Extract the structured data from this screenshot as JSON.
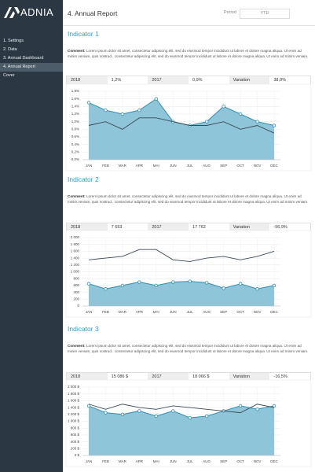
{
  "sidebar": {
    "logo": "ADNIA",
    "menu": [
      "1. Settings",
      "2. Data",
      "3. Annual Dashboard",
      "4. Annual Report",
      "Cover"
    ],
    "active": 3
  },
  "header": {
    "title": "4. Annual Report",
    "period_label": "Period",
    "period_value": "YTD"
  },
  "sections": [
    {
      "title": "Indicator 1",
      "comment_label": "Comment:",
      "comment": "Lorem ipsum dolor sit amet, consectetur adipiscing elit, sed do eiusmod tempor incididunt ut labore et dolore magna aliqua. Ut enim ad minim veniam, quis nostrud.. consectetur adipiscing elit, sed do eiusmod tempor incididunt ut labore et dolore magna aliqua. Ut enim ad minim veniam.",
      "stats": [
        "2018",
        "1,2%",
        "2017",
        "0,9%",
        "Variation",
        "38,0%"
      ]
    },
    {
      "title": "Indicator 2",
      "comment_label": "Comment:",
      "comment": "Lorem ipsum dolor sit amet, consectetur adipiscing elit, sed do eiusmod tempor incididunt ut labore et dolore magna aliqua. Ut enim ad minim veniam, quis nostrud.. consectetur adipiscing elit, sed do eiusmod tempor incididunt ut labore et dolore magna aliqua. Ut enim ad minim veniam.",
      "stats": [
        "2018",
        "7 653",
        "2017",
        "17 762",
        "Variation",
        "-56,9%"
      ]
    },
    {
      "title": "Indicator 3",
      "comment_label": "Comment:",
      "comment": "Lorem ipsum dolor sit amet, consectetur adipiscing elit, sed do eiusmod tempor incididunt ut labore et dolore magna aliqua. Ut enim ad minim veniam, quis nostrud.. consectetur adipiscing elit, sed do eiusmod tempor incididunt ut labore et dolore magna aliqua. Ut enim ad minim veniam.",
      "stats": [
        "2018",
        "15 086 $",
        "2017",
        "18 066 $",
        "Variation",
        "-16,5%"
      ]
    }
  ],
  "chart_data": [
    {
      "type": "area",
      "grid": true,
      "categories": [
        "JAN",
        "FEB",
        "MAR",
        "APR",
        "MAI",
        "JUN",
        "JUL",
        "AUG",
        "SEP",
        "OCT",
        "NOV",
        "DEC"
      ],
      "ylim": [
        0,
        1.8
      ],
      "yticks": [
        {
          "value": 0,
          "label": "0,0%"
        },
        {
          "value": 0.2,
          "label": "0,2%"
        },
        {
          "value": 0.4,
          "label": "0,4%"
        },
        {
          "value": 0.6,
          "label": "0,6%"
        },
        {
          "value": 0.8,
          "label": "0,8%"
        },
        {
          "value": 1,
          "label": "1,0%"
        },
        {
          "value": 1.2,
          "label": "1,2%"
        },
        {
          "value": 1.4,
          "label": "1,4%"
        },
        {
          "value": 1.6,
          "label": "1,6%"
        },
        {
          "value": 1.8,
          "label": "1,8%"
        }
      ],
      "series": [
        {
          "name": "2018",
          "type": "area",
          "color": "#2f8fb5",
          "fill": "#8fc5d9",
          "values": [
            1.5,
            1.3,
            1.2,
            1.3,
            1.6,
            1.0,
            0.9,
            1.0,
            1.4,
            1.2,
            1.0,
            0.9
          ]
        },
        {
          "name": "2017",
          "type": "line",
          "color": "#3b4954",
          "values": [
            0.9,
            1.0,
            0.8,
            1.1,
            1.1,
            1.0,
            0.9,
            0.9,
            1.0,
            0.8,
            0.9,
            0.7
          ]
        }
      ]
    },
    {
      "type": "area",
      "grid": true,
      "categories": [
        "JAN",
        "FEB",
        "MAR",
        "APR",
        "MAI",
        "JUN",
        "JUL",
        "AUG",
        "SEP",
        "OCT",
        "NOV",
        "DEC"
      ],
      "ylim": [
        0,
        2000
      ],
      "yticks": [
        0,
        200,
        400,
        600,
        800,
        {
          "value": 1000,
          "label": "1 000"
        },
        {
          "value": 1200,
          "label": "1 200"
        },
        {
          "value": 1400,
          "label": "1 400"
        },
        {
          "value": 1600,
          "label": "1 600"
        },
        {
          "value": 1800,
          "label": "1 800"
        },
        {
          "value": 2000,
          "label": "2 000"
        }
      ],
      "series": [
        {
          "name": "2018",
          "type": "area",
          "color": "#2f8fb5",
          "fill": "#8fc5d9",
          "values": [
            650,
            500,
            600,
            700,
            600,
            700,
            720,
            680,
            520,
            650,
            500,
            600
          ]
        },
        {
          "name": "2017",
          "type": "line",
          "color": "#3b4954",
          "values": [
            1350,
            1400,
            1450,
            1650,
            1650,
            1350,
            1300,
            1400,
            1450,
            1350,
            1450,
            1600
          ]
        }
      ]
    },
    {
      "type": "area",
      "grid": true,
      "categories": [
        "JAN",
        "FEB",
        "MAR",
        "APR",
        "MAI",
        "JUN",
        "JUL",
        "AUG",
        "SEP",
        "OCT",
        "NOV",
        "DEC"
      ],
      "ylim": [
        0,
        2000
      ],
      "yticks": [
        {
          "value": 0,
          "label": "0 $"
        },
        {
          "value": 200,
          "label": "200 $"
        },
        {
          "value": 400,
          "label": "400 $"
        },
        {
          "value": 600,
          "label": "600 $"
        },
        {
          "value": 800,
          "label": "800 $"
        },
        {
          "value": 1000,
          "label": "1 000 $"
        },
        {
          "value": 1200,
          "label": "1 200 $"
        },
        {
          "value": 1400,
          "label": "1 400 $"
        },
        {
          "value": 1600,
          "label": "1 600 $"
        },
        {
          "value": 1800,
          "label": "1 800 $"
        },
        {
          "value": 2000,
          "label": "2 000 $"
        }
      ],
      "series": [
        {
          "name": "2018",
          "type": "area",
          "color": "#2f8fb5",
          "fill": "#8fc5d9",
          "values": [
            1450,
            1250,
            1200,
            1300,
            1150,
            1300,
            1100,
            1150,
            1300,
            1450,
            1350,
            1450
          ]
        },
        {
          "name": "2017",
          "type": "line",
          "color": "#3b4954",
          "values": [
            1500,
            1350,
            1500,
            1400,
            1350,
            1450,
            1400,
            1350,
            1300,
            1250,
            1500,
            1400
          ]
        }
      ]
    }
  ]
}
